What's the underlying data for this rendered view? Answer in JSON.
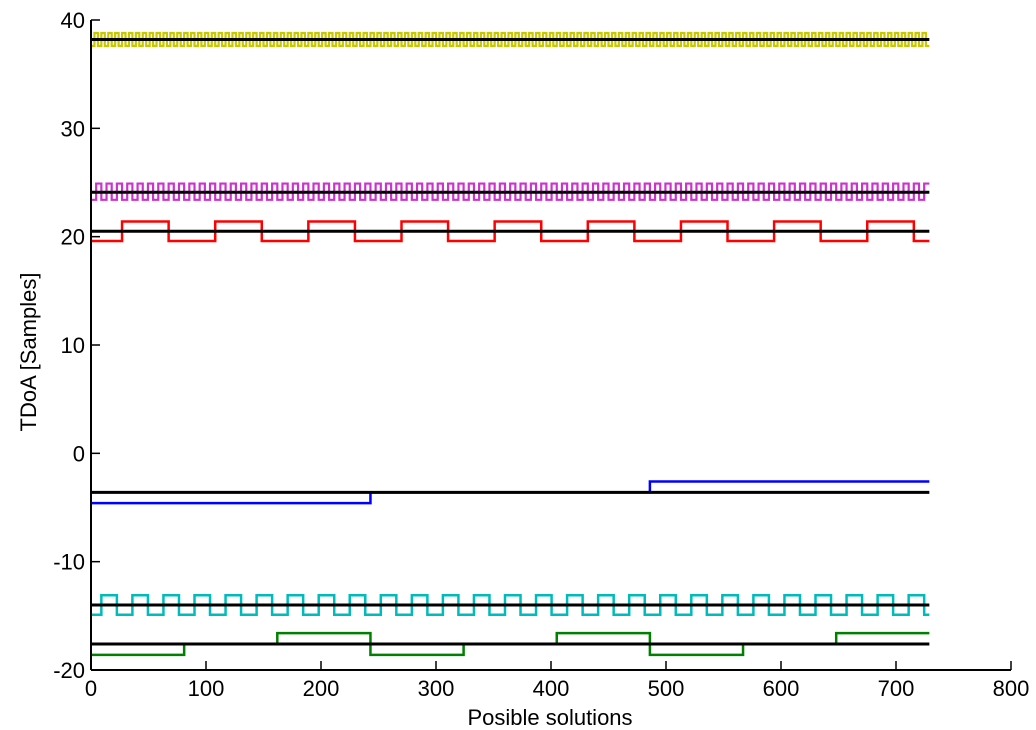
{
  "chart_data": {
    "type": "line",
    "xlabel": "Posible solutions",
    "ylabel": "TDoA [Samples]",
    "xlim": [
      0,
      800
    ],
    "ylim": [
      -20,
      40
    ],
    "xticks": [
      0,
      100,
      200,
      300,
      400,
      500,
      600,
      700,
      800
    ],
    "yticks": [
      -20,
      -10,
      0,
      10,
      20,
      30,
      40
    ],
    "grid": false,
    "legend": "none",
    "series": [
      {
        "color": "#c8c800",
        "kind": "square",
        "low": 37.6,
        "high": 38.8,
        "period": 6,
        "x_end": 729
      },
      {
        "color": "#000000",
        "kind": "constant",
        "value": 38.2,
        "x_end": 729
      },
      {
        "color": "#cc33cc",
        "kind": "square",
        "low": 23.4,
        "high": 24.9,
        "period": 9,
        "x_end": 729
      },
      {
        "color": "#000000",
        "kind": "constant",
        "value": 24.1,
        "x_end": 729
      },
      {
        "color": "#ff0000",
        "kind": "square",
        "low": 19.6,
        "high": 21.4,
        "period": 81,
        "first_low_len": 27,
        "x_end": 729
      },
      {
        "color": "#000000",
        "kind": "constant",
        "value": 20.5,
        "x_end": 729
      },
      {
        "color": "#0000ff",
        "kind": "steps",
        "steps": [
          [
            0,
            -4.6
          ],
          [
            243,
            -3.6
          ],
          [
            486,
            -2.6
          ]
        ],
        "x_end": 729
      },
      {
        "color": "#000000",
        "kind": "constant",
        "value": -3.6,
        "x_end": 729
      },
      {
        "color": "#00bbbb",
        "kind": "square",
        "low": -14.9,
        "high": -13.1,
        "period": 27,
        "first_low_len": 9,
        "x_end": 729
      },
      {
        "color": "#000000",
        "kind": "constant",
        "value": -14.0,
        "x_end": 729
      },
      {
        "color": "#008000",
        "kind": "steps",
        "steps": [
          [
            0,
            -18.6
          ],
          [
            81,
            -17.6
          ],
          [
            162,
            -16.6
          ],
          [
            243,
            -18.6
          ],
          [
            324,
            -17.6
          ],
          [
            405,
            -16.6
          ],
          [
            486,
            -18.6
          ],
          [
            567,
            -17.6
          ],
          [
            648,
            -16.6
          ]
        ],
        "x_end": 729
      },
      {
        "color": "#000000",
        "kind": "constant",
        "value": -17.6,
        "x_end": 729
      }
    ]
  }
}
